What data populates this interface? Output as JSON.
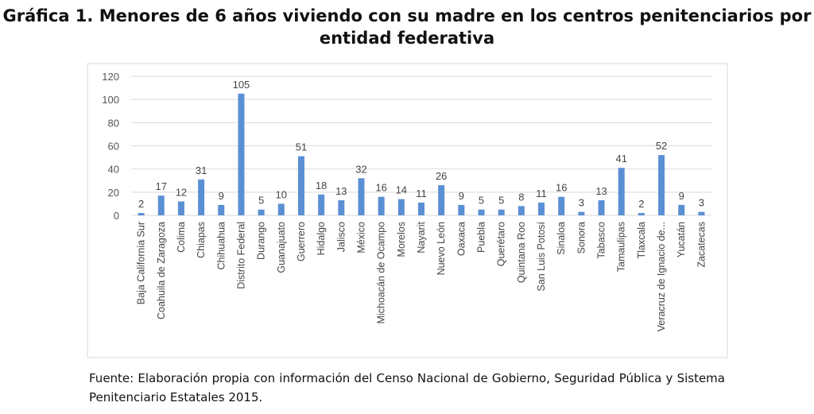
{
  "title": "Gráfica 1. Menores de 6 años viviendo con su madre en los centros penitenciarios por entidad federativa",
  "source": "Fuente: Elaboración propia con información del Censo Nacional de Gobierno, Seguridad Pública y Sistema Penitenciario Estatales 2015.",
  "chart_data": {
    "type": "bar",
    "title": "Gráfica 1. Menores de 6 años viviendo con su madre en los centros penitenciarios por entidad federativa",
    "xlabel": "",
    "ylabel": "",
    "ylim": [
      0,
      120
    ],
    "yticks": [
      0,
      20,
      40,
      60,
      80,
      100,
      120
    ],
    "grid": true,
    "bar_color": "#5b8fd4",
    "categories": [
      "Baja California Sur",
      "Coahuila de Zaragoza",
      "Colima",
      "Chiapas",
      "Chihuahua",
      "Distrito Federal",
      "Durango",
      "Guanajuato",
      "Guerrero",
      "Hidalgo",
      "Jalisco",
      "México",
      "Michoacán de Ocampo",
      "Morelos",
      "Nayarit",
      "Nuevo León",
      "Oaxaca",
      "Puebla",
      "Querétaro",
      "Quintana Roo",
      "San Luis Potosí",
      "Sinaloa",
      "Sonora",
      "Tabasco",
      "Tamaulipas",
      "Tlaxcala",
      "Veracruz de Ignacio de...",
      "Yucatán",
      "Zacatecas"
    ],
    "values": [
      2,
      17,
      12,
      31,
      9,
      105,
      5,
      10,
      51,
      18,
      13,
      32,
      16,
      14,
      11,
      26,
      9,
      5,
      5,
      8,
      11,
      16,
      3,
      13,
      41,
      2,
      52,
      9,
      3
    ]
  }
}
